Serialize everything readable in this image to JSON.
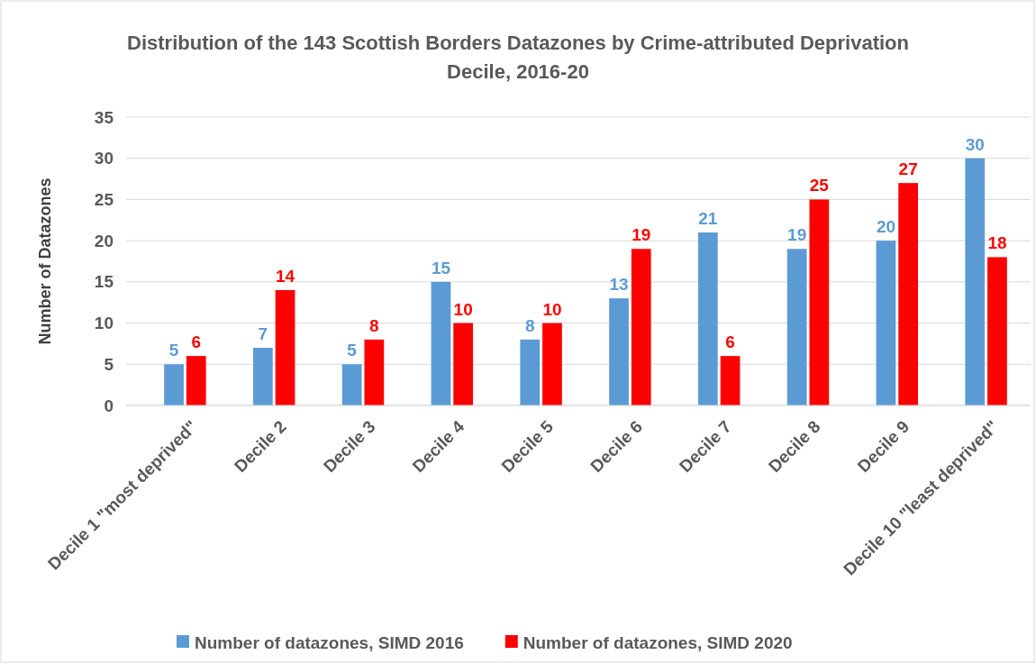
{
  "chart_data": {
    "type": "bar",
    "title": "Distribution of the 143 Scottish Borders Datazones by Crime-attributed Deprivation Decile, 2016-20",
    "ylabel": "Number of Datazones",
    "categories": [
      "Decile 1 \"most deprived\"",
      "Decile 2",
      "Decile 3",
      "Decile 4",
      "Decile 5",
      "Decile 6",
      "Decile 7",
      "Decile 8",
      "Decile 9",
      "Decile 10 \"least deprived\""
    ],
    "series": [
      {
        "name": "Number of datazones, SIMD 2016",
        "color": "#5b9bd5",
        "values": [
          5,
          7,
          5,
          15,
          8,
          13,
          21,
          19,
          20,
          30
        ]
      },
      {
        "name": "Number of datazones, SIMD 2020",
        "color": "#ff0000",
        "values": [
          6,
          14,
          8,
          10,
          10,
          19,
          6,
          25,
          27,
          18
        ]
      }
    ],
    "ylim": [
      0,
      35
    ],
    "yticks": [
      0,
      5,
      10,
      15,
      20,
      25,
      30,
      35
    ],
    "grid": "y",
    "legend": "bottom",
    "data_labels": true
  }
}
